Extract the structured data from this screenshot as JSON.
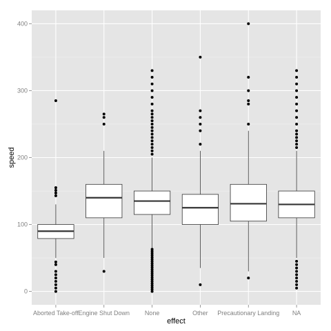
{
  "chart_data": {
    "type": "boxplot",
    "xlabel": "effect",
    "ylabel": "speed",
    "ylim": [
      -20,
      420
    ],
    "yticks": [
      0,
      100,
      200,
      300,
      400
    ],
    "grid": true,
    "legend": "none",
    "colors": {
      "panel": "#e5e5e5",
      "grid_major": "#ffffff",
      "grid_minor": "#f2f2f2",
      "box_fill": "#ffffff",
      "box_stroke": "#333333",
      "outlier": "#000000"
    },
    "categories": [
      "Aborted Take-off",
      "Engine Shut Down",
      "None",
      "Other",
      "Precautionary Landing",
      "NA"
    ],
    "boxes": [
      {
        "q1": 79,
        "median": 90,
        "q3": 100,
        "whisker_low": 50,
        "whisker_high": 130,
        "outliers": [
          0,
          5,
          10,
          15,
          20,
          25,
          30,
          40,
          44,
          143,
          147,
          151,
          155,
          285
        ]
      },
      {
        "q1": 110,
        "median": 140,
        "q3": 160,
        "whisker_low": 50,
        "whisker_high": 210,
        "outliers": [
          30,
          250,
          260,
          265
        ]
      },
      {
        "q1": 115,
        "median": 135,
        "q3": 150,
        "whisker_low": 65,
        "whisker_high": 200,
        "outliers": [
          0,
          3,
          6,
          9,
          12,
          15,
          18,
          21,
          24,
          27,
          30,
          33,
          36,
          39,
          42,
          45,
          48,
          51,
          54,
          57,
          60,
          63,
          205,
          210,
          215,
          220,
          225,
          230,
          235,
          240,
          245,
          250,
          255,
          260,
          265,
          270,
          280,
          290,
          300,
          310,
          320,
          330
        ]
      },
      {
        "q1": 100,
        "median": 125,
        "q3": 145,
        "whisker_low": 35,
        "whisker_high": 210,
        "outliers": [
          10,
          220,
          240,
          250,
          260,
          270,
          350
        ]
      },
      {
        "q1": 105,
        "median": 131,
        "q3": 160,
        "whisker_low": 30,
        "whisker_high": 240,
        "outliers": [
          20,
          250,
          280,
          285,
          300,
          320,
          400
        ]
      },
      {
        "q1": 110,
        "median": 130,
        "q3": 150,
        "whisker_low": 50,
        "whisker_high": 210,
        "outliers": [
          5,
          10,
          15,
          20,
          25,
          30,
          35,
          40,
          45,
          215,
          220,
          225,
          230,
          235,
          240,
          250,
          260,
          270,
          280,
          290,
          300,
          310,
          320,
          330
        ]
      }
    ]
  }
}
